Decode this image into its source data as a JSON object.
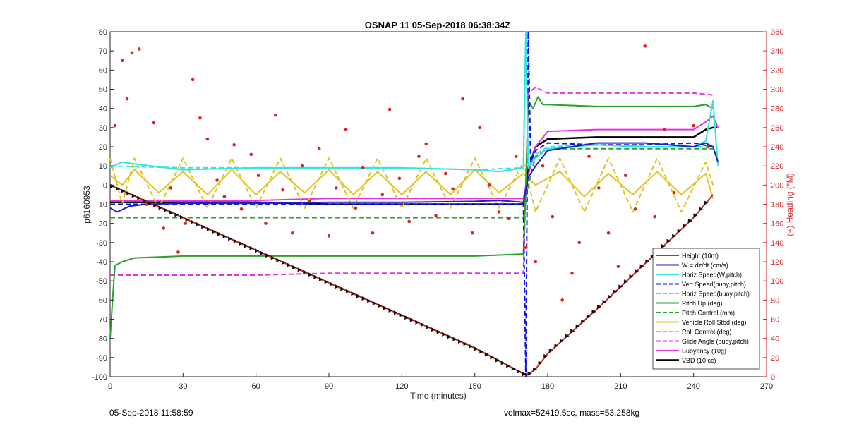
{
  "chart_data": {
    "type": "line",
    "title": "OSNAP 11 05-Sep-2018 06:38:34Z",
    "xlabel": "Time (minutes)",
    "ylabel_left": "p6160953",
    "ylabel_right": "(+) Heading (°M)",
    "xlim": [
      0,
      270
    ],
    "ylim_left": [
      -100,
      80
    ],
    "ylim_right": [
      0,
      360
    ],
    "x_ticks": [
      "0",
      "30",
      "60",
      "90",
      "120",
      "150",
      "180",
      "210",
      "240",
      "270"
    ],
    "y_ticks_left": [
      "80",
      "70",
      "60",
      "50",
      "40",
      "30",
      "20",
      "10",
      "0",
      "-10",
      "-20",
      "-30",
      "-40",
      "-50",
      "-60",
      "-70",
      "-80",
      "-90",
      "-100"
    ],
    "y_ticks_right": [
      "360",
      "340",
      "320",
      "300",
      "280",
      "260",
      "240",
      "220",
      "200",
      "180",
      "160",
      "140",
      "120",
      "100",
      "80",
      "60",
      "40",
      "20",
      "0"
    ],
    "grid": false,
    "legend_position": "bottom-right",
    "colors": {
      "right_axis": "#d62728"
    },
    "series": [
      {
        "name": "Height (10m)",
        "color": "#d9231d",
        "dash": "solid",
        "width": 2,
        "x": [
          0,
          30,
          60,
          90,
          120,
          150,
          170,
          172,
          175,
          180,
          200,
          220,
          240,
          248
        ],
        "y": [
          0,
          -17,
          -34,
          -51,
          -68,
          -85,
          -98.5,
          -99,
          -96,
          -88,
          -65,
          -41,
          -17,
          -5
        ]
      },
      {
        "name": "W = dz/dt (cm/s)",
        "color": "#1f1fbf",
        "dash": "solid",
        "width": 2,
        "x": [
          0,
          3,
          8,
          15,
          30,
          60,
          90,
          120,
          150,
          160,
          170,
          172,
          175,
          180,
          200,
          220,
          240,
          245,
          248,
          250
        ],
        "y": [
          -12,
          -14,
          -11,
          -10,
          -9.5,
          -9.5,
          -9,
          -9,
          -8.5,
          -8,
          -9,
          4,
          10,
          18,
          22,
          22,
          20,
          22,
          20,
          12
        ]
      },
      {
        "name": "Horiz Speed(W,pitch)",
        "color": "#33e3e3",
        "dash": "solid",
        "width": 2,
        "x": [
          0,
          5,
          10,
          30,
          60,
          90,
          120,
          150,
          160,
          170,
          171,
          172,
          175,
          180,
          200,
          220,
          240,
          245,
          248,
          250
        ],
        "y": [
          9,
          12,
          11,
          8,
          9,
          9,
          9,
          8,
          7,
          9,
          80,
          9,
          14,
          19,
          21,
          20,
          20,
          23,
          44,
          10
        ]
      },
      {
        "name": "Vert Speed(buoy,pitch)",
        "color": "#1010ee",
        "dash": "dashed",
        "width": 2,
        "x": [
          0,
          30,
          60,
          90,
          120,
          150,
          170,
          171,
          172,
          173,
          175,
          180,
          200,
          220,
          240,
          248
        ],
        "y": [
          -10,
          -10,
          -10,
          -10,
          -10,
          -10,
          -10,
          -100,
          80,
          12,
          18,
          22,
          21,
          21,
          22,
          20
        ]
      },
      {
        "name": "Horiz Speed(buoy,pitch)",
        "color": "#33e3e3",
        "dash": "dashed",
        "width": 2,
        "x": [
          0,
          30,
          60,
          90,
          120,
          150,
          170,
          171,
          172,
          175,
          180,
          200,
          220,
          240,
          248
        ],
        "y": [
          10,
          9,
          9,
          9,
          9,
          8,
          9,
          80,
          10,
          16,
          20,
          21,
          20,
          20,
          20
        ]
      },
      {
        "name": "Pitch Up (deg)",
        "color": "#2ca02c",
        "dash": "solid",
        "width": 2,
        "x": [
          0,
          1,
          2,
          5,
          10,
          30,
          60,
          90,
          120,
          150,
          170,
          171,
          172,
          174,
          176,
          178,
          180,
          200,
          220,
          240,
          245,
          248
        ],
        "y": [
          -80,
          -60,
          -42,
          -40,
          -38,
          -37,
          -37,
          -37,
          -37,
          -37,
          -36,
          0,
          44,
          40,
          46,
          42,
          42,
          41,
          41,
          41,
          42,
          40
        ]
      },
      {
        "name": "Pitch Control (mm)",
        "color": "#2ca02c",
        "dash": "dashed",
        "width": 2,
        "x": [
          0,
          30,
          60,
          90,
          120,
          150,
          170,
          172,
          175,
          180,
          200,
          220,
          240,
          248
        ],
        "y": [
          -17,
          -17,
          -17,
          -17,
          -17,
          -17,
          -17,
          0,
          15,
          19,
          19,
          19,
          19,
          19
        ]
      },
      {
        "name": "Vehicle Roll Stbd (deg)",
        "color": "#e0c422",
        "dash": "solid",
        "width": 2,
        "x": [
          0,
          5,
          10,
          20,
          30,
          40,
          50,
          60,
          70,
          80,
          90,
          100,
          110,
          120,
          130,
          140,
          150,
          160,
          170,
          175,
          185,
          195,
          205,
          215,
          225,
          235,
          245,
          248
        ],
        "y": [
          5,
          0,
          8,
          -4,
          7,
          -5,
          8,
          -5,
          7,
          -4,
          8,
          -5,
          7,
          -5,
          7,
          -5,
          8,
          -4,
          6,
          0,
          7,
          -6,
          6,
          -5,
          7,
          -5,
          6,
          -7
        ]
      },
      {
        "name": "Roll Control (deg)",
        "color": "#e0c422",
        "dash": "dashed",
        "width": 2,
        "x": [
          0,
          5,
          10,
          20,
          30,
          40,
          50,
          60,
          70,
          80,
          90,
          100,
          110,
          120,
          130,
          140,
          150,
          160,
          170,
          175,
          185,
          195,
          205,
          215,
          225,
          235,
          245,
          248
        ],
        "y": [
          14,
          -10,
          14,
          -12,
          14,
          -12,
          14,
          -12,
          14,
          -12,
          14,
          -12,
          14,
          -12,
          14,
          -12,
          14,
          -12,
          12,
          -14,
          14,
          -14,
          14,
          -14,
          14,
          -14,
          12,
          0
        ]
      },
      {
        "name": "Glide Angle (buoy,pitch)",
        "color": "#e233e2",
        "dash": "dashed",
        "width": 2,
        "x": [
          0,
          5,
          10,
          30,
          60,
          90,
          120,
          150,
          170,
          171,
          172,
          175,
          180,
          200,
          220,
          240,
          248
        ],
        "y": [
          -47,
          -47,
          -47,
          -47,
          -47,
          -46,
          -46,
          -46,
          -46,
          0,
          48,
          51,
          48,
          48,
          48,
          48,
          47
        ]
      },
      {
        "name": "Buoyancy (10g)",
        "color": "#e233e2",
        "dash": "solid",
        "width": 2,
        "x": [
          0,
          30,
          60,
          90,
          120,
          150,
          170,
          172,
          175,
          180,
          200,
          220,
          240,
          245,
          248,
          250
        ],
        "y": [
          -8,
          -8,
          -8,
          -7,
          -7,
          -7,
          -7,
          5,
          20,
          28,
          29,
          29,
          29,
          33,
          36,
          30
        ]
      },
      {
        "name": "VBD (10 cc)",
        "color": "#000000",
        "dash": "solid",
        "width": 2.5,
        "x": [
          0,
          30,
          60,
          90,
          120,
          150,
          170,
          172,
          175,
          180,
          200,
          220,
          240,
          245,
          248,
          250
        ],
        "y": [
          -9,
          -9,
          -9,
          -10,
          -10,
          -10,
          -10,
          8,
          20,
          24,
          25,
          25,
          25,
          29,
          30,
          30
        ]
      }
    ],
    "heading_dots": {
      "color": "#d62728",
      "x": [
        2,
        5,
        7,
        9,
        12,
        15,
        18,
        22,
        25,
        28,
        31,
        34,
        37,
        40,
        44,
        47,
        51,
        54,
        58,
        61,
        64,
        68,
        71,
        75,
        79,
        82,
        86,
        90,
        93,
        97,
        101,
        104,
        108,
        112,
        115,
        119,
        123,
        127,
        130,
        134,
        138,
        141,
        145,
        149,
        152,
        156,
        160,
        164,
        167,
        171,
        175,
        178,
        182,
        186,
        190,
        193,
        197,
        201,
        205,
        209,
        212,
        216,
        220,
        224,
        228,
        232,
        236,
        240,
        243,
        246
      ],
      "y": [
        262,
        330,
        290,
        338,
        342,
        180,
        265,
        155,
        197,
        130,
        160,
        310,
        270,
        248,
        205,
        188,
        242,
        175,
        232,
        210,
        160,
        273,
        195,
        150,
        220,
        183,
        238,
        147,
        197,
        258,
        176,
        218,
        150,
        190,
        279,
        207,
        162,
        230,
        243,
        168,
        212,
        196,
        290,
        150,
        260,
        200,
        172,
        165,
        230,
        135,
        120,
        220,
        167,
        80,
        108,
        140,
        230,
        197,
        150,
        115,
        210,
        175,
        345,
        167,
        258,
        192,
        125,
        262,
        30,
        240
      ]
    },
    "extra_labels": {
      "footer_left": "05-Sep-2018 11:58:59",
      "footer_right": "volmax=52419.5cc, mass=53.258kg"
    }
  }
}
